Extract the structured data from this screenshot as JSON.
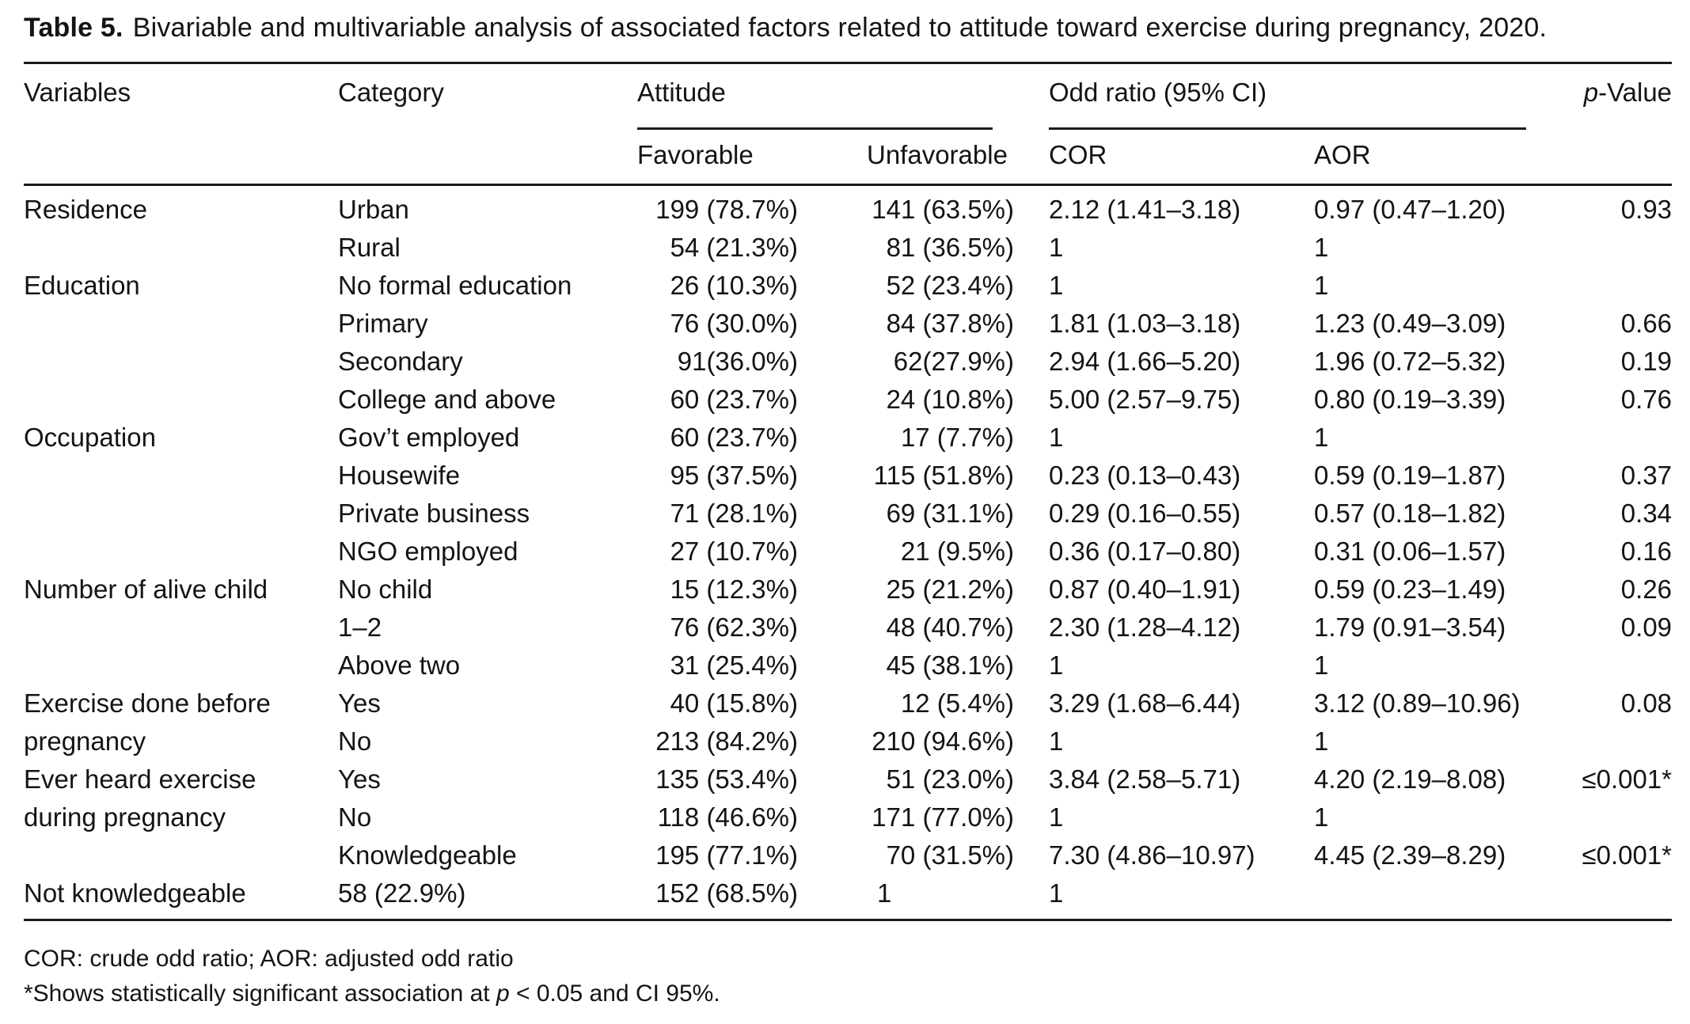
{
  "page": {
    "title_label": "Table 5.",
    "title_text": "Bivariable and multivariable analysis of associated factors related to attitude toward exercise during pregnancy, 2020."
  },
  "table": {
    "header": {
      "variables": "Variables",
      "category": "Category",
      "attitude": "Attitude",
      "odd_ratio": "Odd ratio (95% CI)",
      "favorable": "Favorable",
      "unfavorable": "Unfavorable",
      "cor": "COR",
      "aor": "AOR",
      "p_italic": "p",
      "p_rest": "-Value"
    },
    "rows": [
      [
        "Residence",
        "Urban",
        "199 (78.7%)",
        "141 (63.5%)",
        "2.12 (1.41–3.18)",
        "0.97 (0.47–1.20)",
        "0.93"
      ],
      [
        "",
        "Rural",
        "54 (21.3%)",
        "81 (36.5%)",
        "1",
        "1",
        ""
      ],
      [
        "Education",
        "No formal education",
        "26 (10.3%)",
        "52 (23.4%)",
        "1",
        "1",
        ""
      ],
      [
        "",
        "Primary",
        "76 (30.0%)",
        "84 (37.8%)",
        "1.81 (1.03–3.18)",
        "1.23 (0.49–3.09)",
        "0.66"
      ],
      [
        "",
        "Secondary",
        "91(36.0%)",
        "62(27.9%)",
        "2.94 (1.66–5.20)",
        "1.96 (0.72–5.32)",
        "0.19"
      ],
      [
        "",
        "College and above",
        "60 (23.7%)",
        "24 (10.8%)",
        "5.00 (2.57–9.75)",
        "0.80 (0.19–3.39)",
        "0.76"
      ],
      [
        "Occupation",
        "Gov’t employed",
        "60 (23.7%)",
        "17 (7.7%)",
        "1",
        "1",
        ""
      ],
      [
        "",
        "Housewife",
        "95 (37.5%)",
        "115 (51.8%)",
        "0.23 (0.13–0.43)",
        "0.59 (0.19–1.87)",
        "0.37"
      ],
      [
        "",
        "Private business",
        "71 (28.1%)",
        "69 (31.1%)",
        "0.29 (0.16–0.55)",
        "0.57 (0.18–1.82)",
        "0.34"
      ],
      [
        "",
        "NGO employed",
        "27 (10.7%)",
        "21 (9.5%)",
        "0.36 (0.17–0.80)",
        "0.31 (0.06–1.57)",
        "0.16"
      ],
      [
        "Number of alive child",
        "No child",
        "15 (12.3%)",
        "25 (21.2%)",
        "0.87 (0.40–1.91)",
        "0.59 (0.23–1.49)",
        "0.26"
      ],
      [
        "",
        "1–2",
        "76 (62.3%)",
        "48 (40.7%)",
        "2.30 (1.28–4.12)",
        "1.79 (0.91–3.54)",
        "0.09"
      ],
      [
        "",
        "Above two",
        "31 (25.4%)",
        "45 (38.1%)",
        "1",
        "1",
        ""
      ],
      [
        "Exercise done before",
        "Yes",
        "40 (15.8%)",
        "12 (5.4%)",
        "3.29 (1.68–6.44)",
        "3.12 (0.89–10.96)",
        "0.08"
      ],
      [
        "pregnancy",
        "No",
        "213 (84.2%)",
        "210 (94.6%)",
        "1",
        "1",
        ""
      ],
      [
        "Ever heard exercise",
        "Yes",
        "135 (53.4%)",
        "51 (23.0%)",
        "3.84 (2.58–5.71)",
        "4.20 (2.19–8.08)",
        "≤0.001*"
      ],
      [
        "during pregnancy",
        "No",
        "118 (46.6%)",
        "171 (77.0%)",
        "1",
        "1",
        ""
      ],
      [
        "",
        "Knowledgeable",
        "195 (77.1%)",
        "70 (31.5%)",
        "7.30 (4.86–10.97)",
        "4.45 (2.39–8.29)",
        "≤0.001*"
      ],
      [
        "Not knowledgeable",
        "58 (22.9%)",
        "152 (68.5%)",
        "1",
        "1",
        "",
        ""
      ]
    ]
  },
  "footnotes": {
    "line1": "COR: crude odd ratio; AOR: adjusted odd ratio",
    "line2_pre": "*Shows statistically significant association at ",
    "line2_p": "p",
    "line2_post": " < 0.05 and CI 95%."
  },
  "colors": {
    "text": "#141414",
    "background": "#ffffff",
    "rule": "#1a1a1a"
  }
}
